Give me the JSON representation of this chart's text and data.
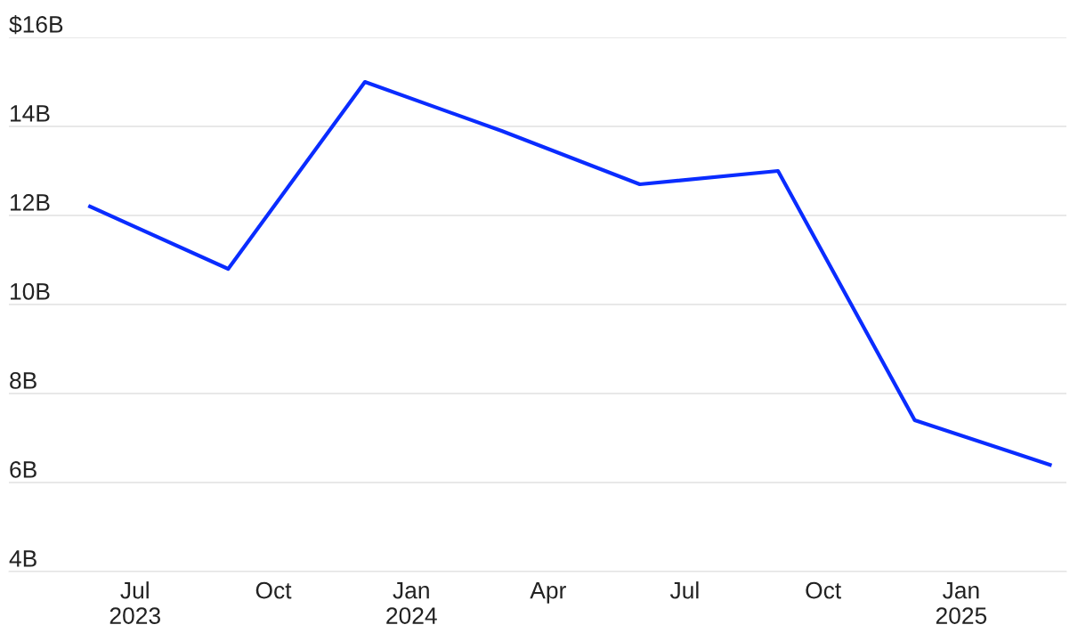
{
  "chart_data": {
    "type": "line",
    "x": [
      "2023-06-01",
      "2023-09-01",
      "2023-12-01",
      "2024-03-01",
      "2024-06-01",
      "2024-09-01",
      "2024-12-01",
      "2025-03-01"
    ],
    "series": [
      {
        "color": "#0a2cff",
        "values": [
          12.2,
          10.8,
          15.0,
          13.9,
          12.7,
          13.0,
          7.4,
          6.4
        ]
      }
    ],
    "xlim": [
      "2023-04-08",
      "2025-03-12"
    ],
    "xticks": [
      {
        "value": "2023-07-01",
        "label": "Jul\n2023"
      },
      {
        "value": "2023-10-01",
        "label": "Oct"
      },
      {
        "value": "2024-01-01",
        "label": "Jan\n2024"
      },
      {
        "value": "2024-04-01",
        "label": "Apr"
      },
      {
        "value": "2024-07-01",
        "label": "Jul"
      },
      {
        "value": "2024-10-01",
        "label": "Oct"
      },
      {
        "value": "2025-01-01",
        "label": "Jan\n2025"
      }
    ],
    "ylim": [
      4,
      16
    ],
    "yticks": [
      {
        "value": 4,
        "label": "4B"
      },
      {
        "value": 6,
        "label": "6B"
      },
      {
        "value": 8,
        "label": "8B"
      },
      {
        "value": 10,
        "label": "10B"
      },
      {
        "value": 12,
        "label": "12B"
      },
      {
        "value": 14,
        "label": "14B"
      },
      {
        "value": 16,
        "label": "$16B"
      }
    ],
    "grid": "y",
    "marker": "none",
    "line_style": "solid"
  }
}
